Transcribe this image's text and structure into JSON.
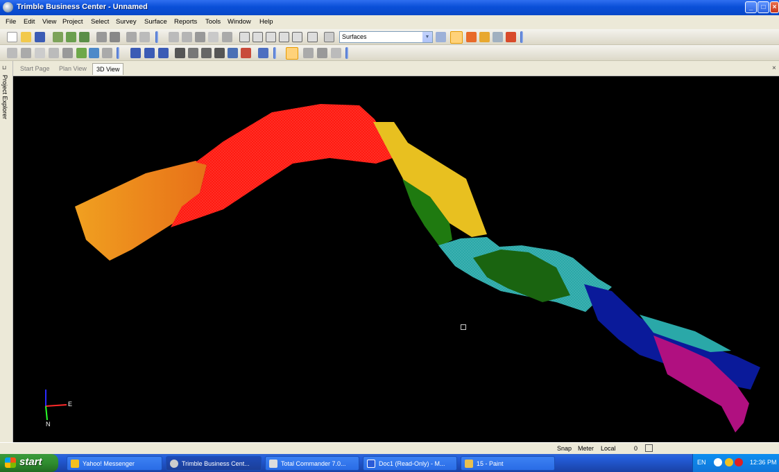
{
  "window": {
    "title": "Trimble Business Center - Unnamed",
    "min_label": "_",
    "max_label": "□",
    "close_label": "×"
  },
  "menu": [
    "File",
    "Edit",
    "View",
    "Project",
    "Select",
    "Survey",
    "Surface",
    "Reports",
    "Tools",
    "Window",
    "Help"
  ],
  "toolbar": {
    "layer_combo_value": "Surfaces",
    "combo_arrow": "▼"
  },
  "tabs": [
    "Start Page",
    "Plan View",
    "3D View"
  ],
  "active_tab": "3D View",
  "tab_close": "×",
  "side_panel": {
    "label": "Project Explorer",
    "pin": "⊔"
  },
  "viewport": {
    "axis_labels": {
      "x": "E",
      "y": "N"
    },
    "surface_colors": [
      "#f0a020",
      "#ff1a10",
      "#e8c020",
      "#1f7a10",
      "#2aa8a8",
      "#0a1a9a",
      "#b01080"
    ]
  },
  "statusbar": {
    "snap": "Snap",
    "units": "Meter",
    "coords": "Local",
    "value": "0"
  },
  "taskbar": {
    "start": "start",
    "items": [
      "Yahoo! Messenger",
      "Trimble Business Cent...",
      "Total Commander 7.0...",
      "Doc1 (Read-Only) - M...",
      "15 - Paint"
    ],
    "tray": {
      "lang": "EN",
      "time": "12:36 PM"
    }
  }
}
